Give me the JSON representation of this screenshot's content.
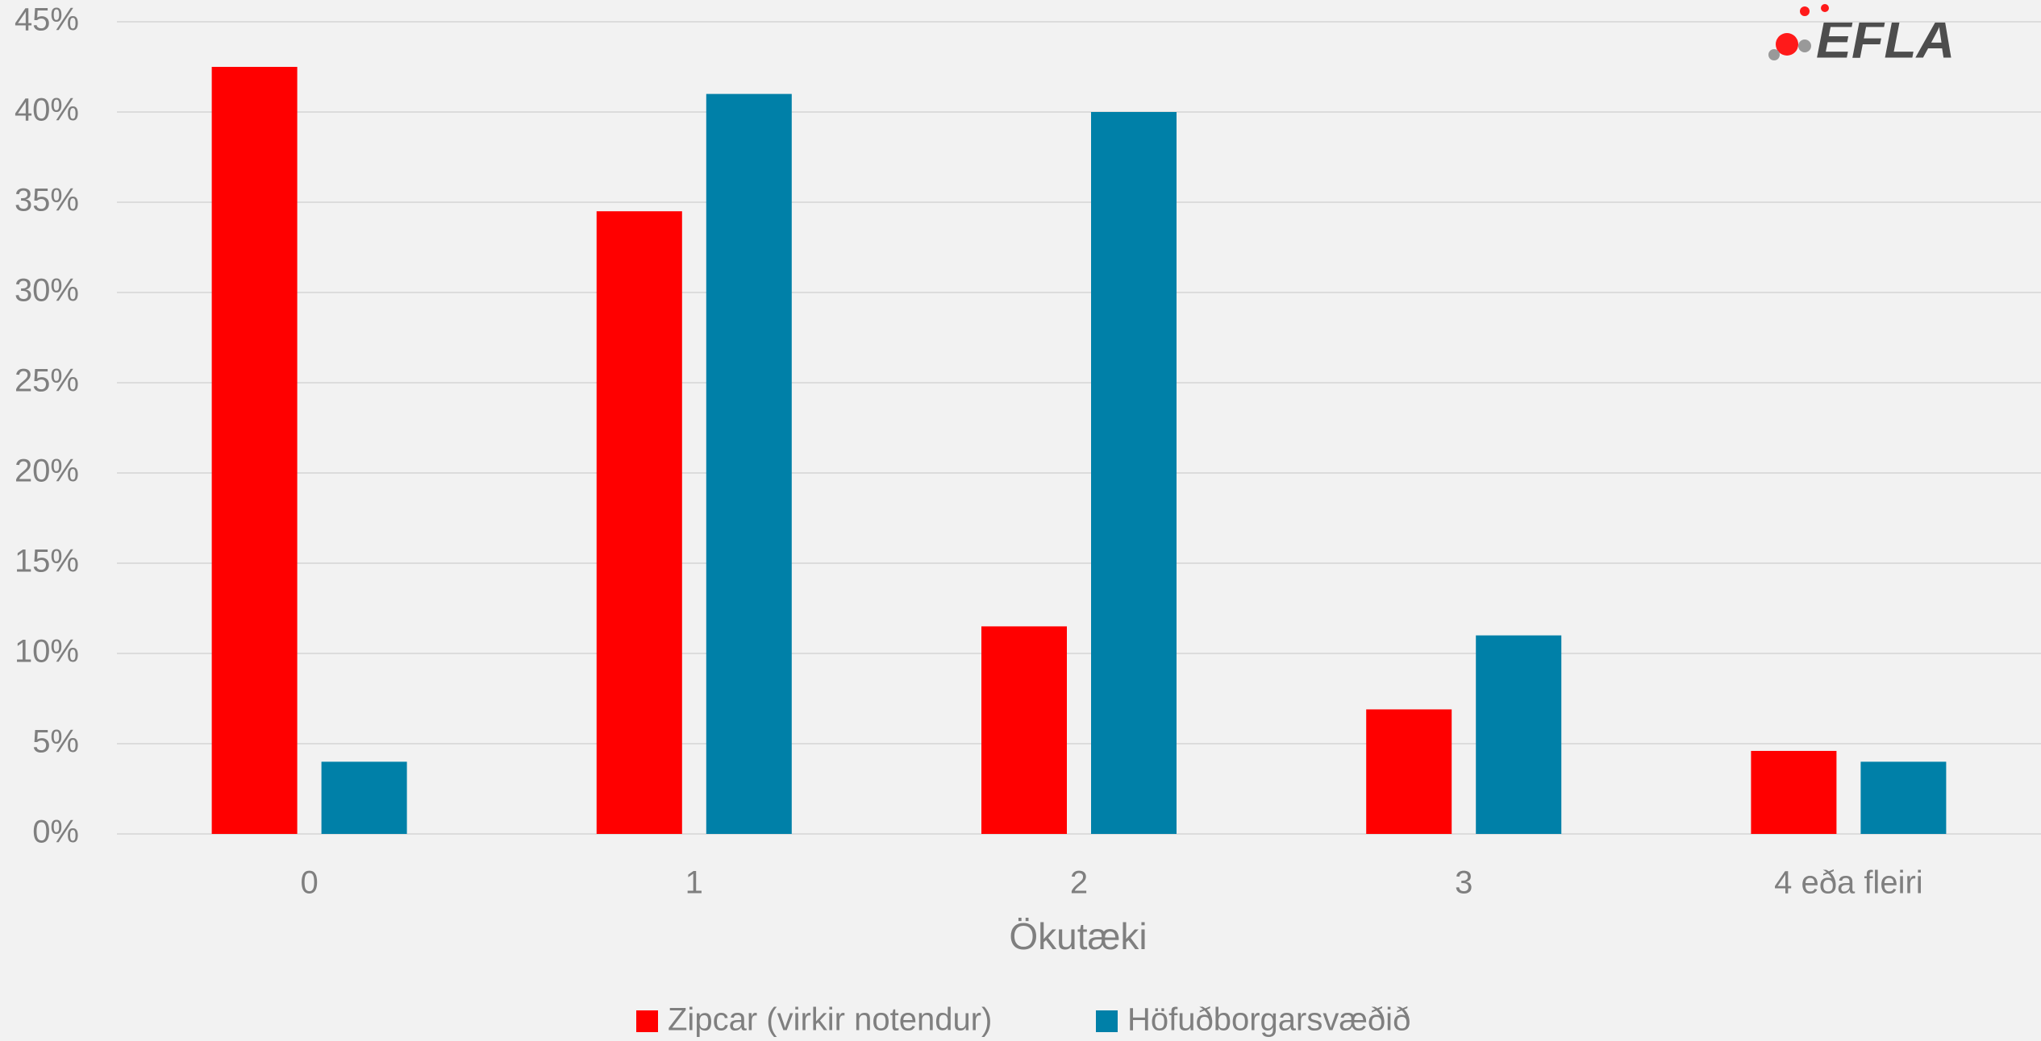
{
  "chart_data": {
    "type": "bar",
    "logo": "EFLA",
    "x_label": "Ökutæki",
    "categories": [
      "0",
      "1",
      "2",
      "3",
      "4 eða fleiri"
    ],
    "series": [
      {
        "name": "Zipcar (virkir notendur)",
        "color": "#ff0000",
        "values": [
          42.5,
          34.5,
          11.5,
          6.9,
          4.6
        ]
      },
      {
        "name": "Höfuðborgarsvæðið",
        "color": "#0080a8",
        "values": [
          4,
          41,
          40,
          11,
          4
        ]
      }
    ],
    "ylim": [
      0,
      45
    ],
    "yticks": [
      {
        "value": 0,
        "label": "0%"
      },
      {
        "value": 5,
        "label": "5%"
      },
      {
        "value": 10,
        "label": "10%"
      },
      {
        "value": 15,
        "label": "15%"
      },
      {
        "value": 20,
        "label": "20%"
      },
      {
        "value": 25,
        "label": "25%"
      },
      {
        "value": 30,
        "label": "30%"
      },
      {
        "value": 35,
        "label": "35%"
      },
      {
        "value": 40,
        "label": "40%"
      },
      {
        "value": 45,
        "label": "45%"
      }
    ],
    "grid": true,
    "legend": "bottom"
  }
}
